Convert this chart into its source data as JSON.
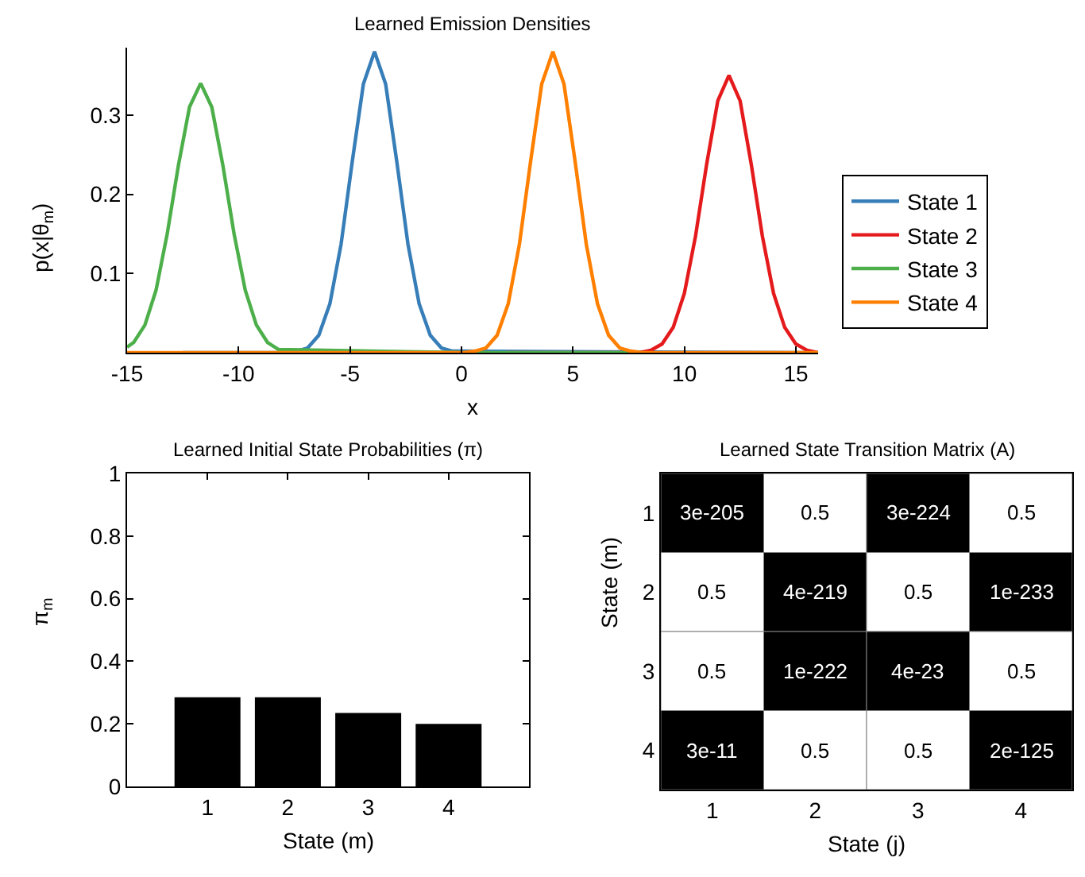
{
  "chart_data": [
    {
      "type": "line",
      "title": "Learned Emission Densities",
      "xlabel": "x",
      "ylabel": "p(x|θ$_{m}$)",
      "xlim": [
        -15,
        16
      ],
      "xticks": [
        -15,
        -10,
        -5,
        0,
        5,
        10,
        15
      ],
      "ylim": [
        0,
        0.385
      ],
      "yticks": [
        0.1,
        0.2,
        0.3
      ],
      "grid": false,
      "legend": "right",
      "marker": "none",
      "line_style": "solid",
      "series": [
        {
          "name": "State 1",
          "color": "#377eb8",
          "x": [
            -12.5,
            -8,
            -7.4,
            -6.9,
            -6.4,
            -5.9,
            -5.4,
            -4.9,
            -4.4,
            -3.9,
            -3.4,
            -2.9,
            -2.4,
            -1.9,
            -1.4,
            -0.9,
            -0.4,
            16
          ],
          "values": [
            0,
            0,
            0.002,
            0.006,
            0.022,
            0.062,
            0.137,
            0.241,
            0.339,
            0.38,
            0.339,
            0.241,
            0.137,
            0.062,
            0.022,
            0.006,
            0.002,
            0
          ]
        },
        {
          "name": "State 2",
          "color": "#e41a1c",
          "x": [
            2,
            8,
            8.5,
            9,
            9.5,
            10,
            10.5,
            11,
            11.5,
            12,
            12.5,
            13,
            13.5,
            14,
            14.5,
            15,
            15.5,
            16
          ],
          "values": [
            0,
            0,
            0.003,
            0.011,
            0.032,
            0.075,
            0.147,
            0.238,
            0.318,
            0.35,
            0.318,
            0.238,
            0.147,
            0.075,
            0.032,
            0.011,
            0.003,
            0
          ]
        },
        {
          "name": "State 3",
          "color": "#4daf4a",
          "x": [
            -15,
            -14.7,
            -14.2,
            -13.7,
            -13.2,
            -12.7,
            -12.2,
            -11.7,
            -11.2,
            -10.7,
            -10.2,
            -9.7,
            -9.2,
            -8.7,
            -8.2,
            0.5,
            7.5
          ],
          "values": [
            0.007,
            0.013,
            0.035,
            0.079,
            0.15,
            0.236,
            0.31,
            0.34,
            0.31,
            0.236,
            0.15,
            0.079,
            0.035,
            0.013,
            0.004,
            0,
            0
          ]
        },
        {
          "name": "State 4",
          "color": "#ff7f00",
          "x": [
            -15,
            0.1,
            0.6,
            1.1,
            1.6,
            2.1,
            2.6,
            3.1,
            3.6,
            4.1,
            4.6,
            5.1,
            5.6,
            6.1,
            6.6,
            7.1,
            7.6,
            8.1,
            16
          ],
          "values": [
            0,
            0,
            0.002,
            0.006,
            0.022,
            0.062,
            0.137,
            0.241,
            0.339,
            0.38,
            0.339,
            0.241,
            0.137,
            0.062,
            0.022,
            0.006,
            0.002,
            0,
            0
          ]
        }
      ]
    },
    {
      "type": "bar",
      "title": "Learned Initial State Probabilities (π)",
      "xlabel": "State (m)",
      "ylabel": "π$_{m}$",
      "categories": [
        "1",
        "2",
        "3",
        "4"
      ],
      "values": [
        0.285,
        0.285,
        0.235,
        0.2
      ],
      "color": "#000000",
      "ylim": [
        0,
        1
      ],
      "yticks": [
        0,
        0.2,
        0.4,
        0.6,
        0.8,
        1
      ],
      "grid": false
    },
    {
      "type": "heatmap",
      "title": "Learned State Transition Matrix (A)",
      "xlabel": "State (j)",
      "ylabel": "State (m)",
      "categories": [
        "1",
        "2",
        "3",
        "4"
      ],
      "y_categories": [
        "1",
        "2",
        "3",
        "4"
      ],
      "cells": [
        [
          3e-205,
          0.5,
          3e-224,
          0.5
        ],
        [
          0.5,
          4e-219,
          0.5,
          1e-233
        ],
        [
          0.5,
          1e-222,
          4e-23,
          0.5
        ],
        [
          3e-11,
          0.5,
          0.5,
          2e-125
        ]
      ],
      "data_labels": true
    }
  ]
}
